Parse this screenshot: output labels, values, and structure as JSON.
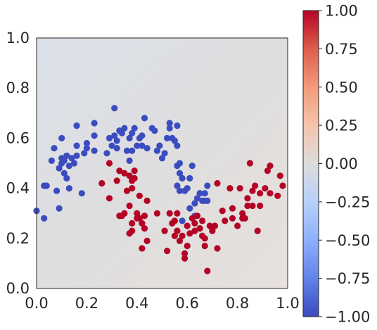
{
  "chart_data": {
    "type": "scatter",
    "title": "",
    "xlabel": "",
    "ylabel": "",
    "xlim": [
      0.0,
      1.0
    ],
    "ylim": [
      0.0,
      1.0
    ],
    "grid": false,
    "background": "decision-surface",
    "xticks": [
      "0.0",
      "0.2",
      "0.4",
      "0.6",
      "0.8",
      "1.0"
    ],
    "yticks": [
      "0.0",
      "0.2",
      "0.4",
      "0.6",
      "0.8",
      "1.0"
    ],
    "colorbar": {
      "colormap": "coolwarm",
      "range": [
        -1.0,
        1.0
      ],
      "ticks": [
        "1.00",
        "0.75",
        "0.50",
        "0.25",
        "0.00",
        "−0.25",
        "−0.50",
        "−0.75",
        "−1.00"
      ],
      "tick_values": [
        1.0,
        0.75,
        0.5,
        0.25,
        0.0,
        -0.25,
        -0.5,
        -0.75,
        -1.0
      ]
    },
    "series": [
      {
        "color": "#3b4cc0",
        "points": [
          [
            0.0,
            0.31
          ],
          [
            0.03,
            0.28
          ],
          [
            0.03,
            0.41
          ],
          [
            0.04,
            0.41
          ],
          [
            0.06,
            0.51
          ],
          [
            0.07,
            0.56
          ],
          [
            0.08,
            0.39
          ],
          [
            0.09,
            0.48
          ],
          [
            0.09,
            0.32
          ],
          [
            0.1,
            0.6
          ],
          [
            0.1,
            0.52
          ],
          [
            0.1,
            0.5
          ],
          [
            0.11,
            0.51
          ],
          [
            0.11,
            0.46
          ],
          [
            0.12,
            0.44
          ],
          [
            0.12,
            0.53
          ],
          [
            0.13,
            0.49
          ],
          [
            0.13,
            0.4
          ],
          [
            0.14,
            0.52
          ],
          [
            0.15,
            0.5
          ],
          [
            0.16,
            0.53
          ],
          [
            0.16,
            0.65
          ],
          [
            0.16,
            0.57
          ],
          [
            0.18,
            0.38
          ],
          [
            0.19,
            0.54
          ],
          [
            0.2,
            0.56
          ],
          [
            0.2,
            0.58
          ],
          [
            0.23,
            0.55
          ],
          [
            0.23,
            0.61
          ],
          [
            0.23,
            0.66
          ],
          [
            0.28,
            0.54
          ],
          [
            0.29,
            0.6
          ],
          [
            0.3,
            0.57
          ],
          [
            0.31,
            0.72
          ],
          [
            0.31,
            0.61
          ],
          [
            0.32,
            0.56
          ],
          [
            0.32,
            0.59
          ],
          [
            0.33,
            0.63
          ],
          [
            0.34,
            0.62
          ],
          [
            0.35,
            0.64
          ],
          [
            0.36,
            0.55
          ],
          [
            0.37,
            0.6
          ],
          [
            0.37,
            0.51
          ],
          [
            0.38,
            0.55
          ],
          [
            0.38,
            0.62
          ],
          [
            0.39,
            0.64
          ],
          [
            0.4,
            0.57
          ],
          [
            0.41,
            0.6
          ],
          [
            0.42,
            0.61
          ],
          [
            0.42,
            0.57
          ],
          [
            0.43,
            0.68
          ],
          [
            0.44,
            0.56
          ],
          [
            0.46,
            0.64
          ],
          [
            0.47,
            0.63
          ],
          [
            0.48,
            0.55
          ],
          [
            0.49,
            0.57
          ],
          [
            0.5,
            0.52
          ],
          [
            0.51,
            0.54
          ],
          [
            0.52,
            0.6
          ],
          [
            0.53,
            0.66
          ],
          [
            0.53,
            0.64
          ],
          [
            0.54,
            0.6
          ],
          [
            0.55,
            0.59
          ],
          [
            0.56,
            0.57
          ],
          [
            0.56,
            0.65
          ],
          [
            0.56,
            0.49
          ],
          [
            0.56,
            0.41
          ],
          [
            0.57,
            0.46
          ],
          [
            0.57,
            0.39
          ],
          [
            0.57,
            0.5
          ],
          [
            0.58,
            0.44
          ],
          [
            0.58,
            0.27
          ],
          [
            0.59,
            0.39
          ],
          [
            0.6,
            0.4
          ],
          [
            0.61,
            0.44
          ],
          [
            0.61,
            0.32
          ],
          [
            0.62,
            0.49
          ],
          [
            0.63,
            0.34
          ],
          [
            0.63,
            0.29
          ],
          [
            0.64,
            0.36
          ],
          [
            0.65,
            0.38
          ],
          [
            0.66,
            0.35
          ],
          [
            0.67,
            0.38
          ],
          [
            0.67,
            0.35
          ],
          [
            0.68,
            0.41
          ],
          [
            0.68,
            0.35
          ]
        ]
      },
      {
        "color": "#b40426",
        "points": [
          [
            0.26,
            0.42
          ],
          [
            0.29,
            0.36
          ],
          [
            0.29,
            0.5
          ],
          [
            0.32,
            0.43
          ],
          [
            0.33,
            0.29
          ],
          [
            0.33,
            0.47
          ],
          [
            0.34,
            0.29
          ],
          [
            0.35,
            0.3
          ],
          [
            0.35,
            0.46
          ],
          [
            0.36,
            0.39
          ],
          [
            0.37,
            0.45
          ],
          [
            0.37,
            0.33
          ],
          [
            0.37,
            0.22
          ],
          [
            0.38,
            0.23
          ],
          [
            0.38,
            0.26
          ],
          [
            0.38,
            0.43
          ],
          [
            0.38,
            0.4
          ],
          [
            0.39,
            0.44
          ],
          [
            0.39,
            0.47
          ],
          [
            0.4,
            0.3
          ],
          [
            0.4,
            0.28
          ],
          [
            0.41,
            0.37
          ],
          [
            0.41,
            0.28
          ],
          [
            0.42,
            0.26
          ],
          [
            0.42,
            0.16
          ],
          [
            0.43,
            0.24
          ],
          [
            0.43,
            0.29
          ],
          [
            0.44,
            0.35
          ],
          [
            0.44,
            0.19
          ],
          [
            0.48,
            0.3
          ],
          [
            0.51,
            0.23
          ],
          [
            0.52,
            0.15
          ],
          [
            0.53,
            0.3
          ],
          [
            0.54,
            0.26
          ],
          [
            0.55,
            0.27
          ],
          [
            0.55,
            0.21
          ],
          [
            0.56,
            0.3
          ],
          [
            0.56,
            0.23
          ],
          [
            0.57,
            0.19
          ],
          [
            0.58,
            0.21
          ],
          [
            0.59,
            0.12
          ],
          [
            0.59,
            0.14
          ],
          [
            0.6,
            0.25
          ],
          [
            0.6,
            0.17
          ],
          [
            0.61,
            0.22
          ],
          [
            0.62,
            0.28
          ],
          [
            0.63,
            0.26
          ],
          [
            0.63,
            0.23
          ],
          [
            0.64,
            0.29
          ],
          [
            0.65,
            0.24
          ],
          [
            0.66,
            0.27
          ],
          [
            0.66,
            0.21
          ],
          [
            0.67,
            0.2
          ],
          [
            0.67,
            0.17
          ],
          [
            0.68,
            0.07
          ],
          [
            0.69,
            0.25
          ],
          [
            0.7,
            0.23
          ],
          [
            0.71,
            0.25
          ],
          [
            0.72,
            0.16
          ],
          [
            0.72,
            0.42
          ],
          [
            0.74,
            0.31
          ],
          [
            0.75,
            0.27
          ],
          [
            0.77,
            0.4
          ],
          [
            0.78,
            0.32
          ],
          [
            0.78,
            0.28
          ],
          [
            0.8,
            0.25
          ],
          [
            0.81,
            0.4
          ],
          [
            0.82,
            0.28
          ],
          [
            0.82,
            0.3
          ],
          [
            0.83,
            0.28
          ],
          [
            0.84,
            0.33
          ],
          [
            0.84,
            0.36
          ],
          [
            0.85,
            0.5
          ],
          [
            0.86,
            0.33
          ],
          [
            0.86,
            0.39
          ],
          [
            0.87,
            0.41
          ],
          [
            0.88,
            0.23
          ],
          [
            0.89,
            0.33
          ],
          [
            0.89,
            0.38
          ],
          [
            0.91,
            0.4
          ],
          [
            0.92,
            0.47
          ],
          [
            0.93,
            0.38
          ],
          [
            0.93,
            0.49
          ],
          [
            0.96,
            0.37
          ],
          [
            0.97,
            0.45
          ],
          [
            0.98,
            0.41
          ]
        ]
      }
    ]
  }
}
